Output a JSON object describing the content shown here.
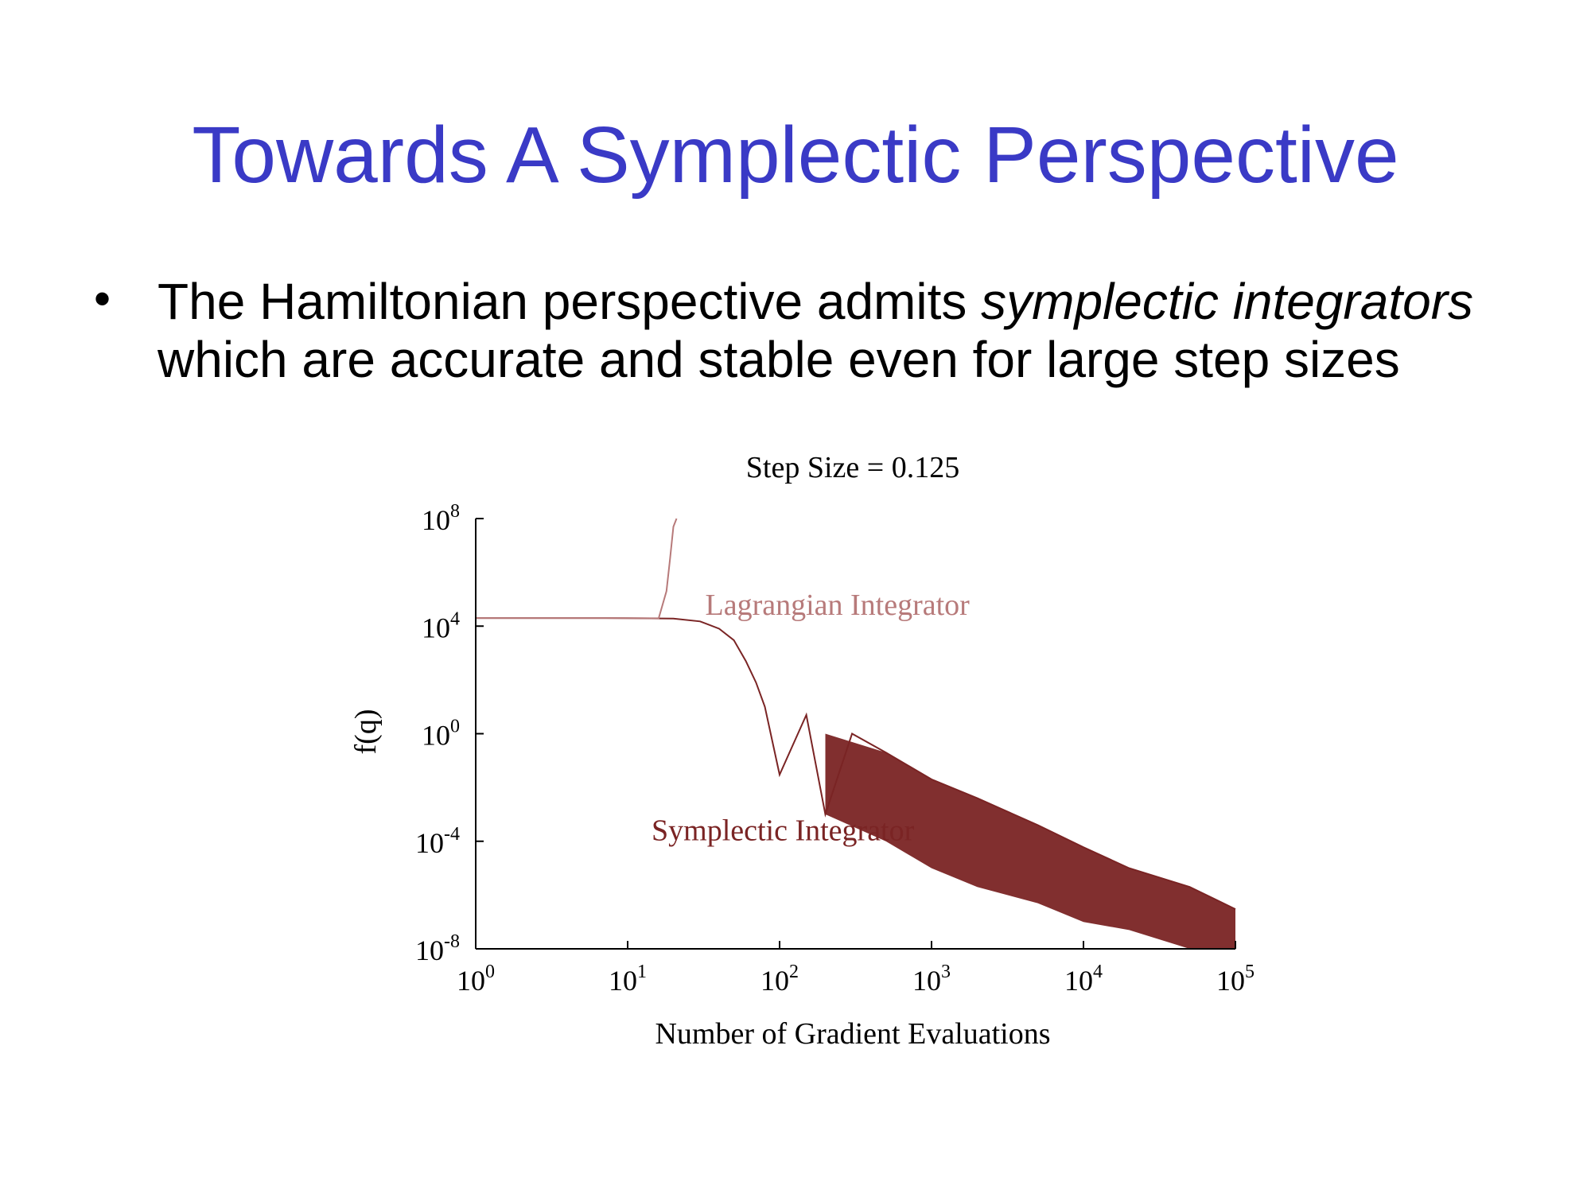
{
  "slide": {
    "title": "Towards A Symplectic Perspective",
    "bullet": {
      "part1": "The Hamiltonian perspective admits ",
      "emph1": "symplectic integrators",
      "part2": " which are accurate and stable even for large step sizes"
    }
  },
  "colors": {
    "title": "#3a3ac6",
    "lagrangian": "#b77a7a",
    "symplectic": "#7a2424",
    "axis": "#000000"
  },
  "chart_data": {
    "type": "line",
    "title": "Step Size = 0.125",
    "xlabel": "Number of Gradient Evaluations",
    "ylabel": "f(q)",
    "xscale": "log",
    "yscale": "log",
    "xlim": [
      1,
      100000
    ],
    "ylim": [
      1e-08,
      100000000.0
    ],
    "xticks": [
      {
        "base": "10",
        "exp": "0"
      },
      {
        "base": "10",
        "exp": "1"
      },
      {
        "base": "10",
        "exp": "2"
      },
      {
        "base": "10",
        "exp": "3"
      },
      {
        "base": "10",
        "exp": "4"
      },
      {
        "base": "10",
        "exp": "5"
      }
    ],
    "yticks": [
      {
        "base": "10",
        "exp": "8"
      },
      {
        "base": "10",
        "exp": "4"
      },
      {
        "base": "10",
        "exp": "0"
      },
      {
        "base": "10",
        "exp": "-4"
      },
      {
        "base": "10",
        "exp": "-8"
      }
    ],
    "series": [
      {
        "name": "Lagrangian Integrator",
        "x": [
          1,
          5,
          10,
          16,
          18,
          19,
          20,
          21
        ],
        "y": [
          20000,
          20000,
          19800,
          19500,
          200000,
          3000000,
          50000000,
          100000000
        ]
      },
      {
        "name": "Symplectic Integrator",
        "x": [
          1,
          10,
          20,
          30,
          40,
          50,
          60,
          70,
          80,
          100,
          150,
          200,
          300,
          500,
          1000,
          2000,
          5000,
          10000,
          20000,
          50000,
          100000
        ],
        "y": [
          20000,
          19800,
          19000,
          15000,
          8000,
          3000,
          500,
          80,
          10,
          0.03,
          5,
          0.001,
          1,
          0.2,
          0.02,
          0.004,
          0.0004,
          6e-05,
          1e-05,
          2e-06,
          3e-07
        ],
        "envelope_low": [
          [
            200,
            0.001
          ],
          [
            500,
            0.0001
          ],
          [
            1000,
            1e-05
          ],
          [
            2000,
            2e-06
          ],
          [
            5000,
            5e-07
          ],
          [
            10000,
            1e-07
          ],
          [
            20000,
            5e-08
          ],
          [
            50000,
            1e-08
          ],
          [
            100000,
            1e-08
          ]
        ],
        "envelope_high": [
          [
            200,
            1
          ],
          [
            500,
            0.2
          ],
          [
            1000,
            0.02
          ],
          [
            2000,
            0.004
          ],
          [
            5000,
            0.0004
          ],
          [
            10000,
            6e-05
          ],
          [
            20000,
            1e-05
          ],
          [
            50000,
            2e-06
          ],
          [
            100000,
            3e-07
          ]
        ]
      }
    ],
    "annotations": [
      {
        "text": "Lagrangian Integrator",
        "x": 20,
        "y": 60000
      },
      {
        "text": "Symplectic Integrator",
        "x": 10,
        "y": 0.00025
      }
    ],
    "grid": false
  }
}
